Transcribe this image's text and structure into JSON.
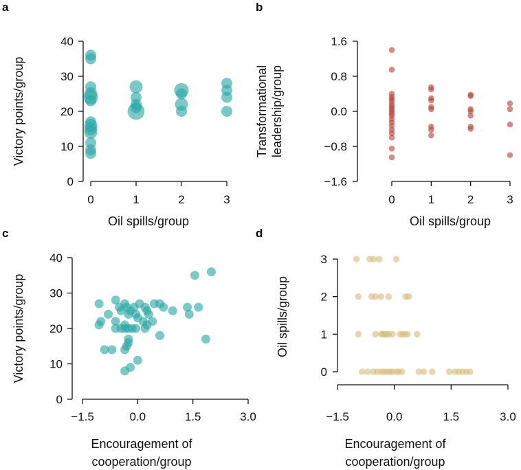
{
  "chart_data": [
    {
      "panel": "a",
      "type": "scatter",
      "color": "#2aa6a4",
      "xlabel": "Oil spills/group",
      "ylabel": "Victory points/group",
      "xticks": [
        "0",
        "1",
        "2",
        "3"
      ],
      "yticks": [
        "0",
        "10",
        "20",
        "30",
        "40"
      ],
      "xlim": [
        -0.7,
        3.2
      ],
      "ylim": [
        0,
        40
      ],
      "points": [
        {
          "x": 0,
          "y": 36,
          "n": 1
        },
        {
          "x": 0,
          "y": 35,
          "n": 1
        },
        {
          "x": 0,
          "y": 27,
          "n": 1
        },
        {
          "x": 0,
          "y": 25,
          "n": 2
        },
        {
          "x": 0,
          "y": 24,
          "n": 3
        },
        {
          "x": 0,
          "y": 23,
          "n": 1
        },
        {
          "x": 0,
          "y": 17,
          "n": 1
        },
        {
          "x": 0,
          "y": 16,
          "n": 2
        },
        {
          "x": 0,
          "y": 15,
          "n": 2
        },
        {
          "x": 0,
          "y": 14,
          "n": 2
        },
        {
          "x": 0,
          "y": 11,
          "n": 1
        },
        {
          "x": 0,
          "y": 9,
          "n": 1
        },
        {
          "x": 0,
          "y": 8,
          "n": 1
        },
        {
          "x": 1,
          "y": 27,
          "n": 2
        },
        {
          "x": 1,
          "y": 24,
          "n": 1
        },
        {
          "x": 1,
          "y": 22,
          "n": 1
        },
        {
          "x": 1,
          "y": 21,
          "n": 1
        },
        {
          "x": 1,
          "y": 20,
          "n": 5
        },
        {
          "x": 2,
          "y": 26,
          "n": 3
        },
        {
          "x": 2,
          "y": 25,
          "n": 1
        },
        {
          "x": 2,
          "y": 22,
          "n": 2
        },
        {
          "x": 2,
          "y": 20,
          "n": 1
        },
        {
          "x": 3,
          "y": 28,
          "n": 1
        },
        {
          "x": 3,
          "y": 26,
          "n": 1
        },
        {
          "x": 3,
          "y": 24,
          "n": 1
        },
        {
          "x": 3,
          "y": 20,
          "n": 1
        }
      ]
    },
    {
      "panel": "b",
      "type": "scatter",
      "color": "#b5453c",
      "xlabel": "Oil spills/group",
      "ylabel": [
        "Transformational",
        "leadership/group"
      ],
      "xticks": [
        "0",
        "1",
        "2",
        "3"
      ],
      "yticks": [
        "−1.6",
        "−0.8",
        "0.0",
        "0.8",
        "1.6"
      ],
      "xlim": [
        -0.2,
        3.2
      ],
      "ylim": [
        -1.6,
        1.6
      ],
      "points": [
        {
          "x": 0,
          "y": 1.4
        },
        {
          "x": 0,
          "y": 0.95
        },
        {
          "x": 0,
          "y": 0.4
        },
        {
          "x": 0,
          "y": 0.33
        },
        {
          "x": 0,
          "y": 0.28
        },
        {
          "x": 0,
          "y": 0.22
        },
        {
          "x": 0,
          "y": 0.15
        },
        {
          "x": 0,
          "y": 0.1
        },
        {
          "x": 0,
          "y": 0.05
        },
        {
          "x": 0,
          "y": 0.0
        },
        {
          "x": 0,
          "y": -0.05
        },
        {
          "x": 0,
          "y": -0.1
        },
        {
          "x": 0,
          "y": -0.18
        },
        {
          "x": 0,
          "y": -0.25
        },
        {
          "x": 0,
          "y": -0.33
        },
        {
          "x": 0,
          "y": -0.42
        },
        {
          "x": 0,
          "y": -0.5
        },
        {
          "x": 0,
          "y": -0.6
        },
        {
          "x": 0,
          "y": -0.85
        },
        {
          "x": 0,
          "y": -1.05
        },
        {
          "x": 1,
          "y": 0.55
        },
        {
          "x": 1,
          "y": 0.5
        },
        {
          "x": 1,
          "y": 0.3
        },
        {
          "x": 1,
          "y": 0.25
        },
        {
          "x": 1,
          "y": 0.1
        },
        {
          "x": 1,
          "y": 0.05
        },
        {
          "x": 1,
          "y": -0.35
        },
        {
          "x": 1,
          "y": -0.42
        },
        {
          "x": 1,
          "y": -0.55
        },
        {
          "x": 2,
          "y": 0.38
        },
        {
          "x": 2,
          "y": 0.35
        },
        {
          "x": 2,
          "y": 0.05
        },
        {
          "x": 2,
          "y": 0.0
        },
        {
          "x": 2,
          "y": -0.1
        },
        {
          "x": 2,
          "y": -0.35
        },
        {
          "x": 2,
          "y": -0.4
        },
        {
          "x": 3,
          "y": 0.18
        },
        {
          "x": 3,
          "y": 0.05
        },
        {
          "x": 3,
          "y": -0.3
        },
        {
          "x": 3,
          "y": -1.0
        }
      ]
    },
    {
      "panel": "c",
      "type": "scatter",
      "color": "#2aa6a4",
      "xlabel": [
        "Encouragement of",
        "cooperation/group"
      ],
      "ylabel": "Victory points/group",
      "xticks": [
        "−1.5",
        "0.0",
        "1.5",
        "3.0"
      ],
      "yticks": [
        "0",
        "10",
        "20",
        "30",
        "40"
      ],
      "xlim": [
        -1.5,
        3.0
      ],
      "ylim": [
        0,
        40
      ],
      "points": [
        {
          "x": 2.0,
          "y": 36
        },
        {
          "x": 1.55,
          "y": 35
        },
        {
          "x": -0.6,
          "y": 28
        },
        {
          "x": 1.35,
          "y": 26
        },
        {
          "x": -1.05,
          "y": 27
        },
        {
          "x": -0.35,
          "y": 27
        },
        {
          "x": 0.05,
          "y": 27
        },
        {
          "x": 0.45,
          "y": 27
        },
        {
          "x": 0.6,
          "y": 27
        },
        {
          "x": -0.5,
          "y": 26
        },
        {
          "x": -0.3,
          "y": 26
        },
        {
          "x": -0.1,
          "y": 26
        },
        {
          "x": 0.2,
          "y": 26
        },
        {
          "x": 0.7,
          "y": 26
        },
        {
          "x": 1.65,
          "y": 26
        },
        {
          "x": -0.45,
          "y": 25
        },
        {
          "x": -0.2,
          "y": 25
        },
        {
          "x": 0.25,
          "y": 25
        },
        {
          "x": 0.95,
          "y": 25
        },
        {
          "x": -0.05,
          "y": 24
        },
        {
          "x": -0.25,
          "y": 24
        },
        {
          "x": -0.8,
          "y": 24
        },
        {
          "x": 1.4,
          "y": 24
        },
        {
          "x": 0.3,
          "y": 24
        },
        {
          "x": 0.0,
          "y": 23
        },
        {
          "x": -1.0,
          "y": 22
        },
        {
          "x": -0.6,
          "y": 22
        },
        {
          "x": 0.15,
          "y": 22
        },
        {
          "x": 0.4,
          "y": 22
        },
        {
          "x": -1.05,
          "y": 21
        },
        {
          "x": -0.35,
          "y": 21
        },
        {
          "x": 0.25,
          "y": 21
        },
        {
          "x": -0.6,
          "y": 20
        },
        {
          "x": -0.45,
          "y": 20
        },
        {
          "x": -0.35,
          "y": 20
        },
        {
          "x": -0.25,
          "y": 20
        },
        {
          "x": -0.15,
          "y": 20
        },
        {
          "x": -0.05,
          "y": 20
        },
        {
          "x": 0.2,
          "y": 20
        },
        {
          "x": 0.6,
          "y": 18
        },
        {
          "x": -0.25,
          "y": 17
        },
        {
          "x": 1.85,
          "y": 17
        },
        {
          "x": -0.25,
          "y": 16
        },
        {
          "x": -0.3,
          "y": 15
        },
        {
          "x": -0.9,
          "y": 14
        },
        {
          "x": -0.7,
          "y": 14
        },
        {
          "x": -0.35,
          "y": 14
        },
        {
          "x": 0.0,
          "y": 11
        },
        {
          "x": -0.2,
          "y": 9
        },
        {
          "x": -0.35,
          "y": 8
        }
      ]
    },
    {
      "panel": "d",
      "type": "scatter",
      "color": "#d6bd7f",
      "xlabel": [
        "Encouragement of",
        "cooperation/group"
      ],
      "ylabel": "Oil spills/group",
      "xticks": [
        "−1.5",
        "0.0",
        "1.5",
        "3.0"
      ],
      "yticks": [
        "0",
        "1",
        "2",
        "3"
      ],
      "xlim": [
        -1.5,
        3.0
      ],
      "ylim": [
        0,
        3
      ],
      "points": [
        {
          "x": -1.0,
          "y": 3
        },
        {
          "x": -0.65,
          "y": 3
        },
        {
          "x": -0.55,
          "y": 3
        },
        {
          "x": -0.4,
          "y": 3
        },
        {
          "x": 0.05,
          "y": 3
        },
        {
          "x": -0.95,
          "y": 2
        },
        {
          "x": -0.6,
          "y": 2
        },
        {
          "x": -0.5,
          "y": 2
        },
        {
          "x": -0.35,
          "y": 2
        },
        {
          "x": -0.15,
          "y": 2
        },
        {
          "x": 0.3,
          "y": 2
        },
        {
          "x": 0.38,
          "y": 2
        },
        {
          "x": -0.95,
          "y": 1
        },
        {
          "x": -0.5,
          "y": 1
        },
        {
          "x": -0.35,
          "y": 1
        },
        {
          "x": -0.3,
          "y": 1
        },
        {
          "x": -0.25,
          "y": 1
        },
        {
          "x": -0.2,
          "y": 1
        },
        {
          "x": -0.15,
          "y": 1
        },
        {
          "x": -0.05,
          "y": 1
        },
        {
          "x": 0.15,
          "y": 1
        },
        {
          "x": 0.22,
          "y": 1
        },
        {
          "x": 0.28,
          "y": 1
        },
        {
          "x": 0.35,
          "y": 1
        },
        {
          "x": 0.6,
          "y": 1
        },
        {
          "x": -0.85,
          "y": 0
        },
        {
          "x": -0.7,
          "y": 0
        },
        {
          "x": -0.55,
          "y": 0
        },
        {
          "x": -0.45,
          "y": 0
        },
        {
          "x": -0.35,
          "y": 0
        },
        {
          "x": -0.28,
          "y": 0
        },
        {
          "x": -0.2,
          "y": 0
        },
        {
          "x": -0.12,
          "y": 0
        },
        {
          "x": -0.05,
          "y": 0
        },
        {
          "x": 0.05,
          "y": 0
        },
        {
          "x": 0.12,
          "y": 0
        },
        {
          "x": 0.2,
          "y": 0
        },
        {
          "x": 0.65,
          "y": 0
        },
        {
          "x": 0.78,
          "y": 0
        },
        {
          "x": 1.0,
          "y": 0
        },
        {
          "x": 1.45,
          "y": 0
        },
        {
          "x": 1.6,
          "y": 0
        },
        {
          "x": 1.7,
          "y": 0
        },
        {
          "x": 1.8,
          "y": 0
        },
        {
          "x": 1.9,
          "y": 0
        },
        {
          "x": 2.0,
          "y": 0
        }
      ]
    }
  ]
}
